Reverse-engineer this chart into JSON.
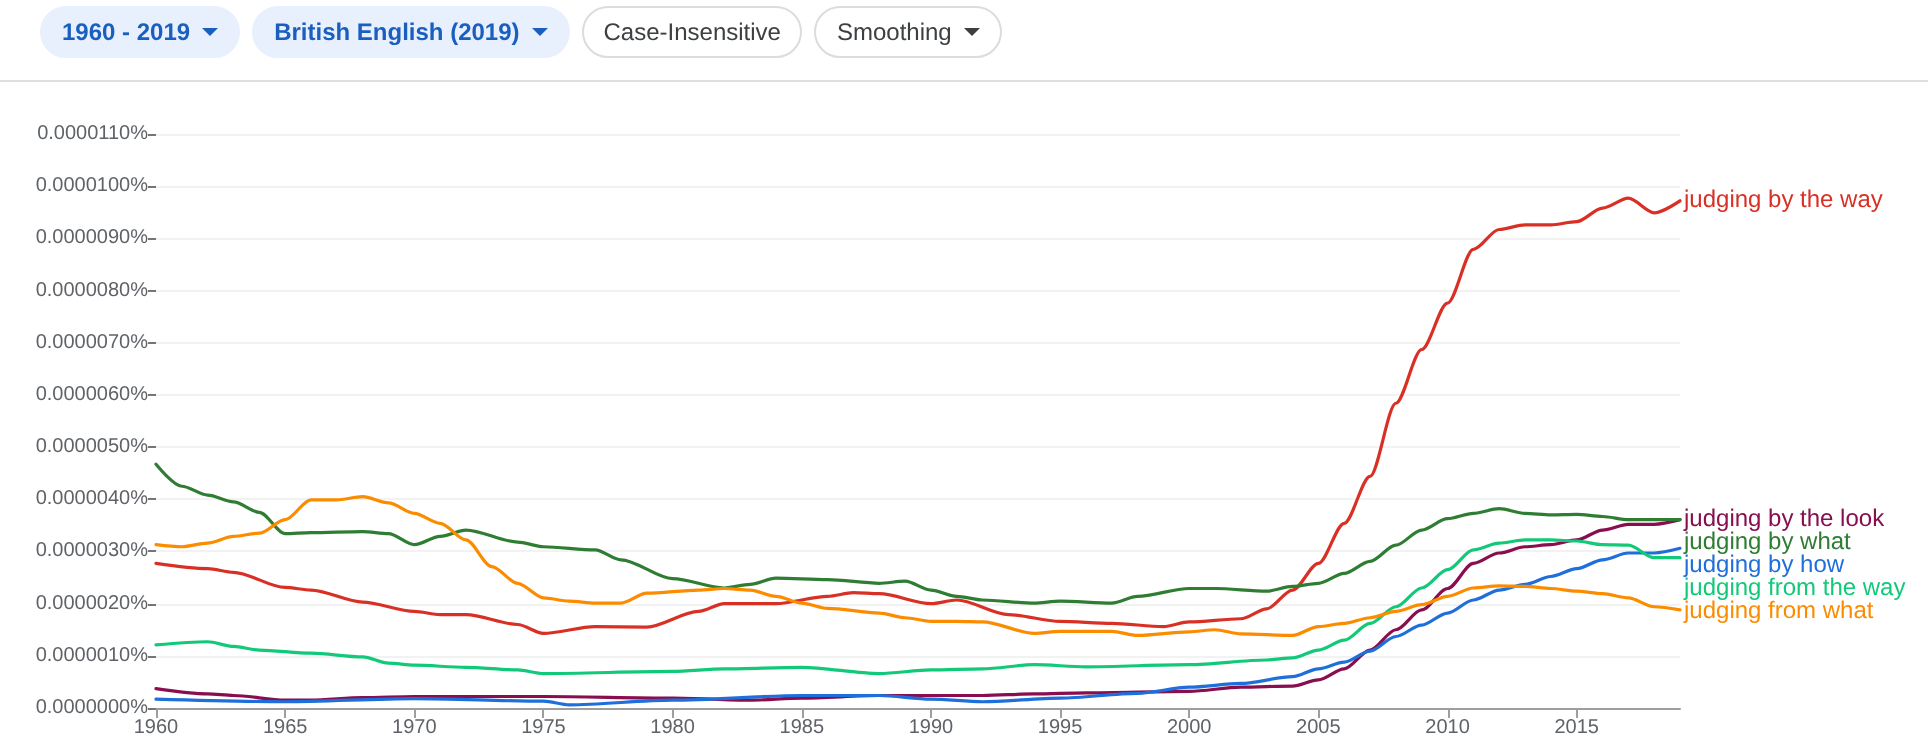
{
  "chart_data": {
    "type": "line",
    "annotations": [
      "1960 - 2019",
      "British English (2019)",
      "Case-Insensitive",
      "Smoothing"
    ],
    "xlim": [
      1960,
      2019
    ],
    "xticks": [
      1960,
      1965,
      1970,
      1975,
      1980,
      1985,
      1990,
      1995,
      2000,
      2005,
      2010,
      2015
    ],
    "ylim": [
      0,
      1.1e-05
    ],
    "yticks": [
      {
        "value": 0,
        "label": "0.0000000%"
      },
      {
        "value": 1e-06,
        "label": "0.0000010%"
      },
      {
        "value": 2e-06,
        "label": "0.0000020%"
      },
      {
        "value": 3e-06,
        "label": "0.0000030%"
      },
      {
        "value": 4e-06,
        "label": "0.0000040%"
      },
      {
        "value": 5e-06,
        "label": "0.0000050%"
      },
      {
        "value": 6e-06,
        "label": "0.0000060%"
      },
      {
        "value": 7e-06,
        "label": "0.0000070%"
      },
      {
        "value": 8e-06,
        "label": "0.0000080%"
      },
      {
        "value": 9e-06,
        "label": "0.0000090%"
      },
      {
        "value": 1e-05,
        "label": "0.0000100%"
      },
      {
        "value": 1.1e-05,
        "label": "0.0000110%"
      }
    ],
    "grid": "y",
    "legend": false,
    "series": [
      {
        "name": "judging by the way",
        "color": "#d93025",
        "x": [
          1960,
          1962,
          1963,
          1965,
          1966,
          1968,
          1970,
          1971,
          1972,
          1974,
          1975,
          1977,
          1979,
          1981,
          1982,
          1984,
          1986,
          1987,
          1988,
          1990,
          1991,
          1993,
          1995,
          1997,
          1999,
          2000,
          2002,
          2003,
          2004,
          2005,
          2006,
          2007,
          2008,
          2009,
          2010,
          2011,
          2012,
          2013,
          2014,
          2015,
          2016,
          2017,
          2018,
          2019
        ],
        "values": [
          2.77e-06,
          2.67e-06,
          2.6e-06,
          2.31e-06,
          2.26e-06,
          2.03e-06,
          1.85e-06,
          1.79e-06,
          1.79e-06,
          1.6e-06,
          1.43e-06,
          1.56e-06,
          1.55e-06,
          1.85e-06,
          2e-06,
          2e-06,
          2.14e-06,
          2.21e-06,
          2.19e-06,
          2e-06,
          2.07e-06,
          1.79e-06,
          1.66e-06,
          1.62e-06,
          1.56e-06,
          1.65e-06,
          1.71e-06,
          1.9e-06,
          2.26e-06,
          2.77e-06,
          3.54e-06,
          4.44e-06,
          5.84e-06,
          6.87e-06,
          7.76e-06,
          8.79e-06,
          9.17e-06,
          9.26e-06,
          9.26e-06,
          9.32e-06,
          9.58e-06,
          9.77e-06,
          9.49e-06,
          9.72e-06
        ]
      },
      {
        "name": "judging by the look",
        "color": "#880e4f",
        "x": [
          1960,
          1962,
          1963,
          1965,
          1966,
          1968,
          1970,
          1975,
          1980,
          1983,
          1985,
          1988,
          1990,
          1992,
          1994,
          1996,
          2000,
          2002,
          2004,
          2005,
          2006,
          2007,
          2008,
          2009,
          2010,
          2011,
          2012,
          2013,
          2014,
          2015,
          2016,
          2017,
          2018,
          2019
        ],
        "values": [
          3.7e-07,
          2.7e-07,
          2.4e-07,
          1.5e-07,
          1.5e-07,
          2e-07,
          2.2e-07,
          2.2e-07,
          1.9e-07,
          1.5e-07,
          1.9e-07,
          2.4e-07,
          2.4e-07,
          2.4e-07,
          2.7e-07,
          2.9e-07,
          3.2e-07,
          4e-07,
          4.2e-07,
          5.4e-07,
          7.5e-07,
          1.11e-06,
          1.5e-06,
          1.88e-06,
          2.29e-06,
          2.77e-06,
          2.97e-06,
          3.09e-06,
          3.13e-06,
          3.22e-06,
          3.41e-06,
          3.52e-06,
          3.52e-06,
          3.61e-06
        ]
      },
      {
        "name": "judging by what",
        "color": "#2e7d32",
        "x": [
          1960,
          1961,
          1962,
          1963,
          1964,
          1965,
          1966,
          1968,
          1969,
          1970,
          1971,
          1972,
          1974,
          1975,
          1977,
          1978,
          1980,
          1982,
          1983,
          1984,
          1986,
          1988,
          1989,
          1990,
          1991,
          1992,
          1994,
          1995,
          1997,
          1998,
          2000,
          2001,
          2003,
          2004,
          2005,
          2006,
          2007,
          2008,
          2009,
          2010,
          2011,
          2012,
          2013,
          2014,
          2015,
          2016,
          2017,
          2019
        ],
        "values": [
          4.67e-06,
          4.25e-06,
          4.08e-06,
          3.95e-06,
          3.75e-06,
          3.34e-06,
          3.36e-06,
          3.38e-06,
          3.34e-06,
          3.13e-06,
          3.29e-06,
          3.41e-06,
          3.18e-06,
          3.09e-06,
          3.03e-06,
          2.84e-06,
          2.48e-06,
          2.3e-06,
          2.37e-06,
          2.49e-06,
          2.46e-06,
          2.39e-06,
          2.43e-06,
          2.26e-06,
          2.14e-06,
          2.07e-06,
          2.01e-06,
          2.05e-06,
          2.01e-06,
          2.14e-06,
          2.29e-06,
          2.29e-06,
          2.24e-06,
          2.33e-06,
          2.39e-06,
          2.58e-06,
          2.81e-06,
          3.12e-06,
          3.41e-06,
          3.63e-06,
          3.73e-06,
          3.82e-06,
          3.73e-06,
          3.7e-06,
          3.71e-06,
          3.67e-06,
          3.61e-06,
          3.61e-06
        ]
      },
      {
        "name": "judging by how",
        "color": "#1e6fd9",
        "x": [
          1960,
          1965,
          1970,
          1975,
          1976,
          1980,
          1985,
          1988,
          1990,
          1992,
          1995,
          1998,
          2000,
          2002,
          2004,
          2005,
          2006,
          2007,
          2008,
          2009,
          2010,
          2011,
          2012,
          2013,
          2014,
          2015,
          2016,
          2017,
          2018,
          2019
        ],
        "values": [
          1.7e-07,
          1.2e-07,
          1.8e-07,
          1.3e-07,
          6e-08,
          1.5e-07,
          2.4e-07,
          2.4e-07,
          1.7e-07,
          1.2e-07,
          1.9e-07,
          2.8e-07,
          4e-07,
          4.7e-07,
          6e-07,
          7.5e-07,
          8.8e-07,
          1.09e-06,
          1.37e-06,
          1.59e-06,
          1.82e-06,
          2.07e-06,
          2.26e-06,
          2.37e-06,
          2.52e-06,
          2.67e-06,
          2.84e-06,
          2.97e-06,
          2.97e-06,
          3.06e-06
        ]
      },
      {
        "name": "judging from the way",
        "color": "#12c97a",
        "x": [
          1960,
          1962,
          1963,
          1964,
          1966,
          1968,
          1969,
          1970,
          1972,
          1974,
          1975,
          1980,
          1982,
          1985,
          1988,
          1990,
          1992,
          1994,
          1996,
          2000,
          2003,
          2004,
          2005,
          2006,
          2007,
          2008,
          2009,
          2010,
          2011,
          2012,
          2013,
          2014,
          2015,
          2016,
          2017,
          2018,
          2019
        ],
        "values": [
          1.21e-06,
          1.27e-06,
          1.18e-06,
          1.11e-06,
          1.05e-06,
          9.8e-07,
          8.6e-07,
          8.2e-07,
          7.8e-07,
          7.3e-07,
          6.6e-07,
          7e-07,
          7.5e-07,
          7.8e-07,
          6.6e-07,
          7.3e-07,
          7.5e-07,
          8.3e-07,
          7.9e-07,
          8.3e-07,
          9.2e-07,
          9.6e-07,
          1.11e-06,
          1.3e-06,
          1.62e-06,
          1.94e-06,
          2.3e-06,
          2.65e-06,
          3.03e-06,
          3.16e-06,
          3.22e-06,
          3.22e-06,
          3.2e-06,
          3.13e-06,
          3.12e-06,
          2.88e-06,
          2.88e-06
        ]
      },
      {
        "name": "judging from what",
        "color": "#fb8c00",
        "x": [
          1960,
          1961,
          1962,
          1963,
          1964,
          1965,
          1966,
          1967,
          1968,
          1969,
          1970,
          1971,
          1972,
          1973,
          1974,
          1975,
          1976,
          1977,
          1978,
          1979,
          1981,
          1982,
          1983,
          1984,
          1985,
          1986,
          1988,
          1989,
          1990,
          1991,
          1992,
          1994,
          1995,
          1997,
          1998,
          2000,
          2001,
          2002,
          2004,
          2005,
          2006,
          2007,
          2008,
          2009,
          2010,
          2011,
          2012,
          2013,
          2014,
          2015,
          2016,
          2017,
          2018,
          2019
        ],
        "values": [
          3.13e-06,
          3.09e-06,
          3.16e-06,
          3.29e-06,
          3.35e-06,
          3.61e-06,
          3.99e-06,
          3.99e-06,
          4.05e-06,
          3.93e-06,
          3.73e-06,
          3.54e-06,
          3.22e-06,
          2.71e-06,
          2.39e-06,
          2.11e-06,
          2.05e-06,
          2.01e-06,
          2.01e-06,
          2.2e-06,
          2.26e-06,
          2.29e-06,
          2.26e-06,
          2.14e-06,
          2.01e-06,
          1.91e-06,
          1.82e-06,
          1.73e-06,
          1.66e-06,
          1.66e-06,
          1.65e-06,
          1.43e-06,
          1.47e-06,
          1.47e-06,
          1.39e-06,
          1.46e-06,
          1.5e-06,
          1.42e-06,
          1.39e-06,
          1.56e-06,
          1.62e-06,
          1.73e-06,
          1.85e-06,
          1.98e-06,
          2.14e-06,
          2.3e-06,
          2.34e-06,
          2.33e-06,
          2.29e-06,
          2.24e-06,
          2.19e-06,
          2.11e-06,
          1.94e-06,
          1.88e-06
        ]
      }
    ]
  }
}
